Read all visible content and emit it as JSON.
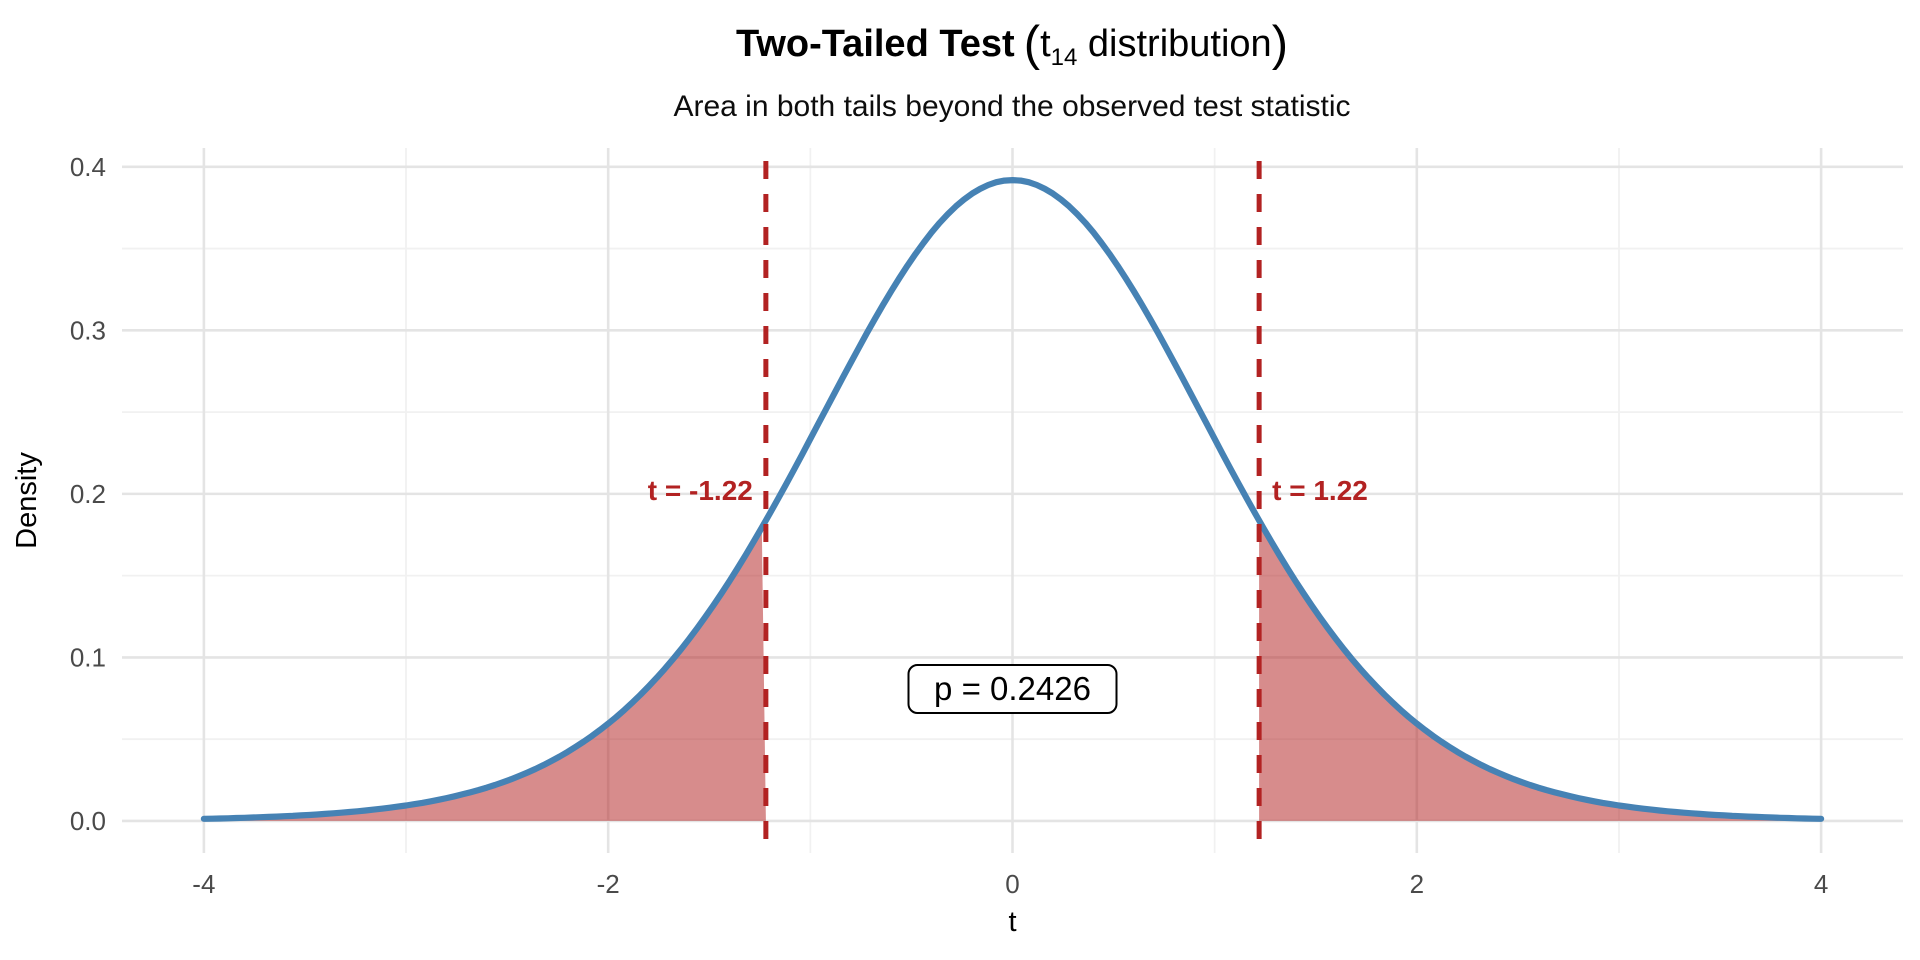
{
  "chart_data": {
    "type": "area",
    "title": {
      "bold": "Two-Tailed Test",
      "paren_open": "(",
      "t_symbol": "t",
      "df_subscript": "14",
      "rest": " distribution",
      "paren_close": ")"
    },
    "subtitle": "Area in both tails beyond the observed test statistic",
    "xlabel": "t",
    "ylabel": "Density",
    "distribution": "Student t",
    "df": 14,
    "t_observed": 1.22,
    "t_observed_negative": -1.22,
    "p_value": 0.2426,
    "p_label": "p = 0.2426",
    "crit_labels": {
      "left": "t = -1.22",
      "right": "t = 1.22"
    },
    "peak_density": 0.3919,
    "density_at_observed": 0.1837,
    "xlim": [
      -4.405,
      4.405
    ],
    "ylim": [
      -0.0196,
      0.4115
    ],
    "curve_range": [
      -4,
      4
    ],
    "x_ticks": [
      {
        "value": -4,
        "label": "-4"
      },
      {
        "value": -2,
        "label": "-2"
      },
      {
        "value": 0,
        "label": "0"
      },
      {
        "value": 2,
        "label": "2"
      },
      {
        "value": 4,
        "label": "4"
      }
    ],
    "y_ticks": [
      {
        "value": 0.0,
        "label": "0.0"
      },
      {
        "value": 0.1,
        "label": "0.1"
      },
      {
        "value": 0.2,
        "label": "0.2"
      },
      {
        "value": 0.3,
        "label": "0.3"
      },
      {
        "value": 0.4,
        "label": "0.4"
      }
    ],
    "x_minor": [
      -3,
      -1,
      1,
      3
    ],
    "y_minor": [
      0.05,
      0.15,
      0.25,
      0.35
    ],
    "curve_points": [
      [
        -4.0,
        0.0013
      ],
      [
        -3.5,
        0.0035
      ],
      [
        -3.0,
        0.0095
      ],
      [
        -2.5,
        0.0246
      ],
      [
        -2.0,
        0.0595
      ],
      [
        -1.5,
        0.1282
      ],
      [
        -1.22,
        0.1837
      ],
      [
        -1.0,
        0.2336
      ],
      [
        -0.5,
        0.3432
      ],
      [
        0.0,
        0.3919
      ],
      [
        0.5,
        0.3432
      ],
      [
        1.0,
        0.2336
      ],
      [
        1.22,
        0.1837
      ],
      [
        1.5,
        0.1282
      ],
      [
        2.0,
        0.0595
      ],
      [
        2.5,
        0.0246
      ],
      [
        3.0,
        0.0095
      ],
      [
        3.5,
        0.0035
      ],
      [
        4.0,
        0.0013
      ]
    ],
    "grid": true,
    "legend": "none",
    "colors": {
      "curve": "#4682B4",
      "tail_fill": "rgba(178,34,34,0.52)",
      "critical": "#B22222",
      "grid_major": "#E4E4E4",
      "grid_minor": "#F1F1F1",
      "tick_text": "#4A4A4A",
      "axis_title_text": "#000000",
      "p_box_border": "#000000",
      "p_box_fill": "#FFFFFF",
      "background": "#FFFFFF"
    }
  }
}
